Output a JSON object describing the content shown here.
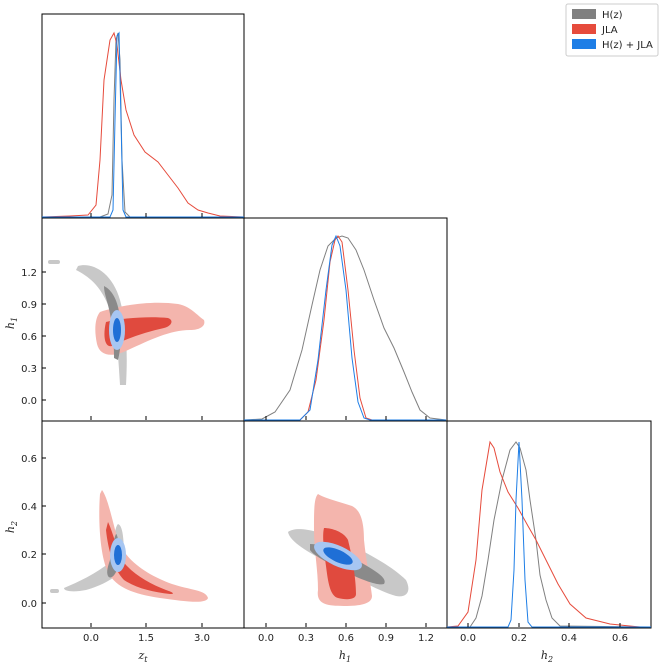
{
  "chart_data": {
    "type": "corner",
    "parameters": [
      "zt",
      "h1",
      "h2"
    ],
    "axis_labels": {
      "zt": {
        "base": "z",
        "sub": "t"
      },
      "h1": {
        "base": "h",
        "sub": "1"
      },
      "h2": {
        "base": "h",
        "sub": "2"
      }
    },
    "ranges": {
      "zt": [
        -1.0,
        4.0
      ],
      "h1": [
        -0.15,
        1.35
      ],
      "h2": [
        -0.12,
        0.74
      ]
    },
    "ticks": {
      "zt": [
        "0.0",
        "1.5",
        "3.0"
      ],
      "h1": [
        "0.0",
        "0.3",
        "0.6",
        "0.9",
        "1.2"
      ],
      "h2": [
        "0.0",
        "0.2",
        "0.4",
        "0.6"
      ]
    },
    "legend": {
      "position": "top-right",
      "entries": [
        {
          "name": "H(z)",
          "color": "#808080"
        },
        {
          "name": "JLA",
          "color": "#e64b3c"
        },
        {
          "name": "H(z) + JLA",
          "color": "#1e7ee6"
        }
      ]
    },
    "series": [
      {
        "name": "H(z)",
        "color": "#808080",
        "fill_outer": "#c8c8c8",
        "fill_inner": "#8a8a8a",
        "marginals": {
          "zt": {
            "peak": 0.85,
            "sigma": 0.1
          },
          "h1": {
            "peak": 0.57,
            "sigma": 0.2
          },
          "h2": {
            "peak": 0.17,
            "sigma": 0.05
          }
        }
      },
      {
        "name": "JLA",
        "color": "#e64b3c",
        "fill_outer": "#f4b5ad",
        "fill_inner": "#e04a3e",
        "marginals": {
          "zt": {
            "peak": 0.75,
            "sigma": 0.3
          },
          "h1": {
            "peak": 0.5,
            "sigma": 0.08
          },
          "h2": {
            "peak": 0.07,
            "sigma": 0.04
          }
        }
      },
      {
        "name": "H(z) + JLA",
        "color": "#1e7ee6",
        "fill_outer": "#a7c6f2",
        "fill_inner": "#1f6fd6",
        "marginals": {
          "zt": {
            "peak": 0.85,
            "sigma": 0.06
          },
          "h1": {
            "peak": 0.52,
            "sigma": 0.08
          },
          "h2": {
            "peak": 0.19,
            "sigma": 0.015
          }
        }
      }
    ]
  }
}
